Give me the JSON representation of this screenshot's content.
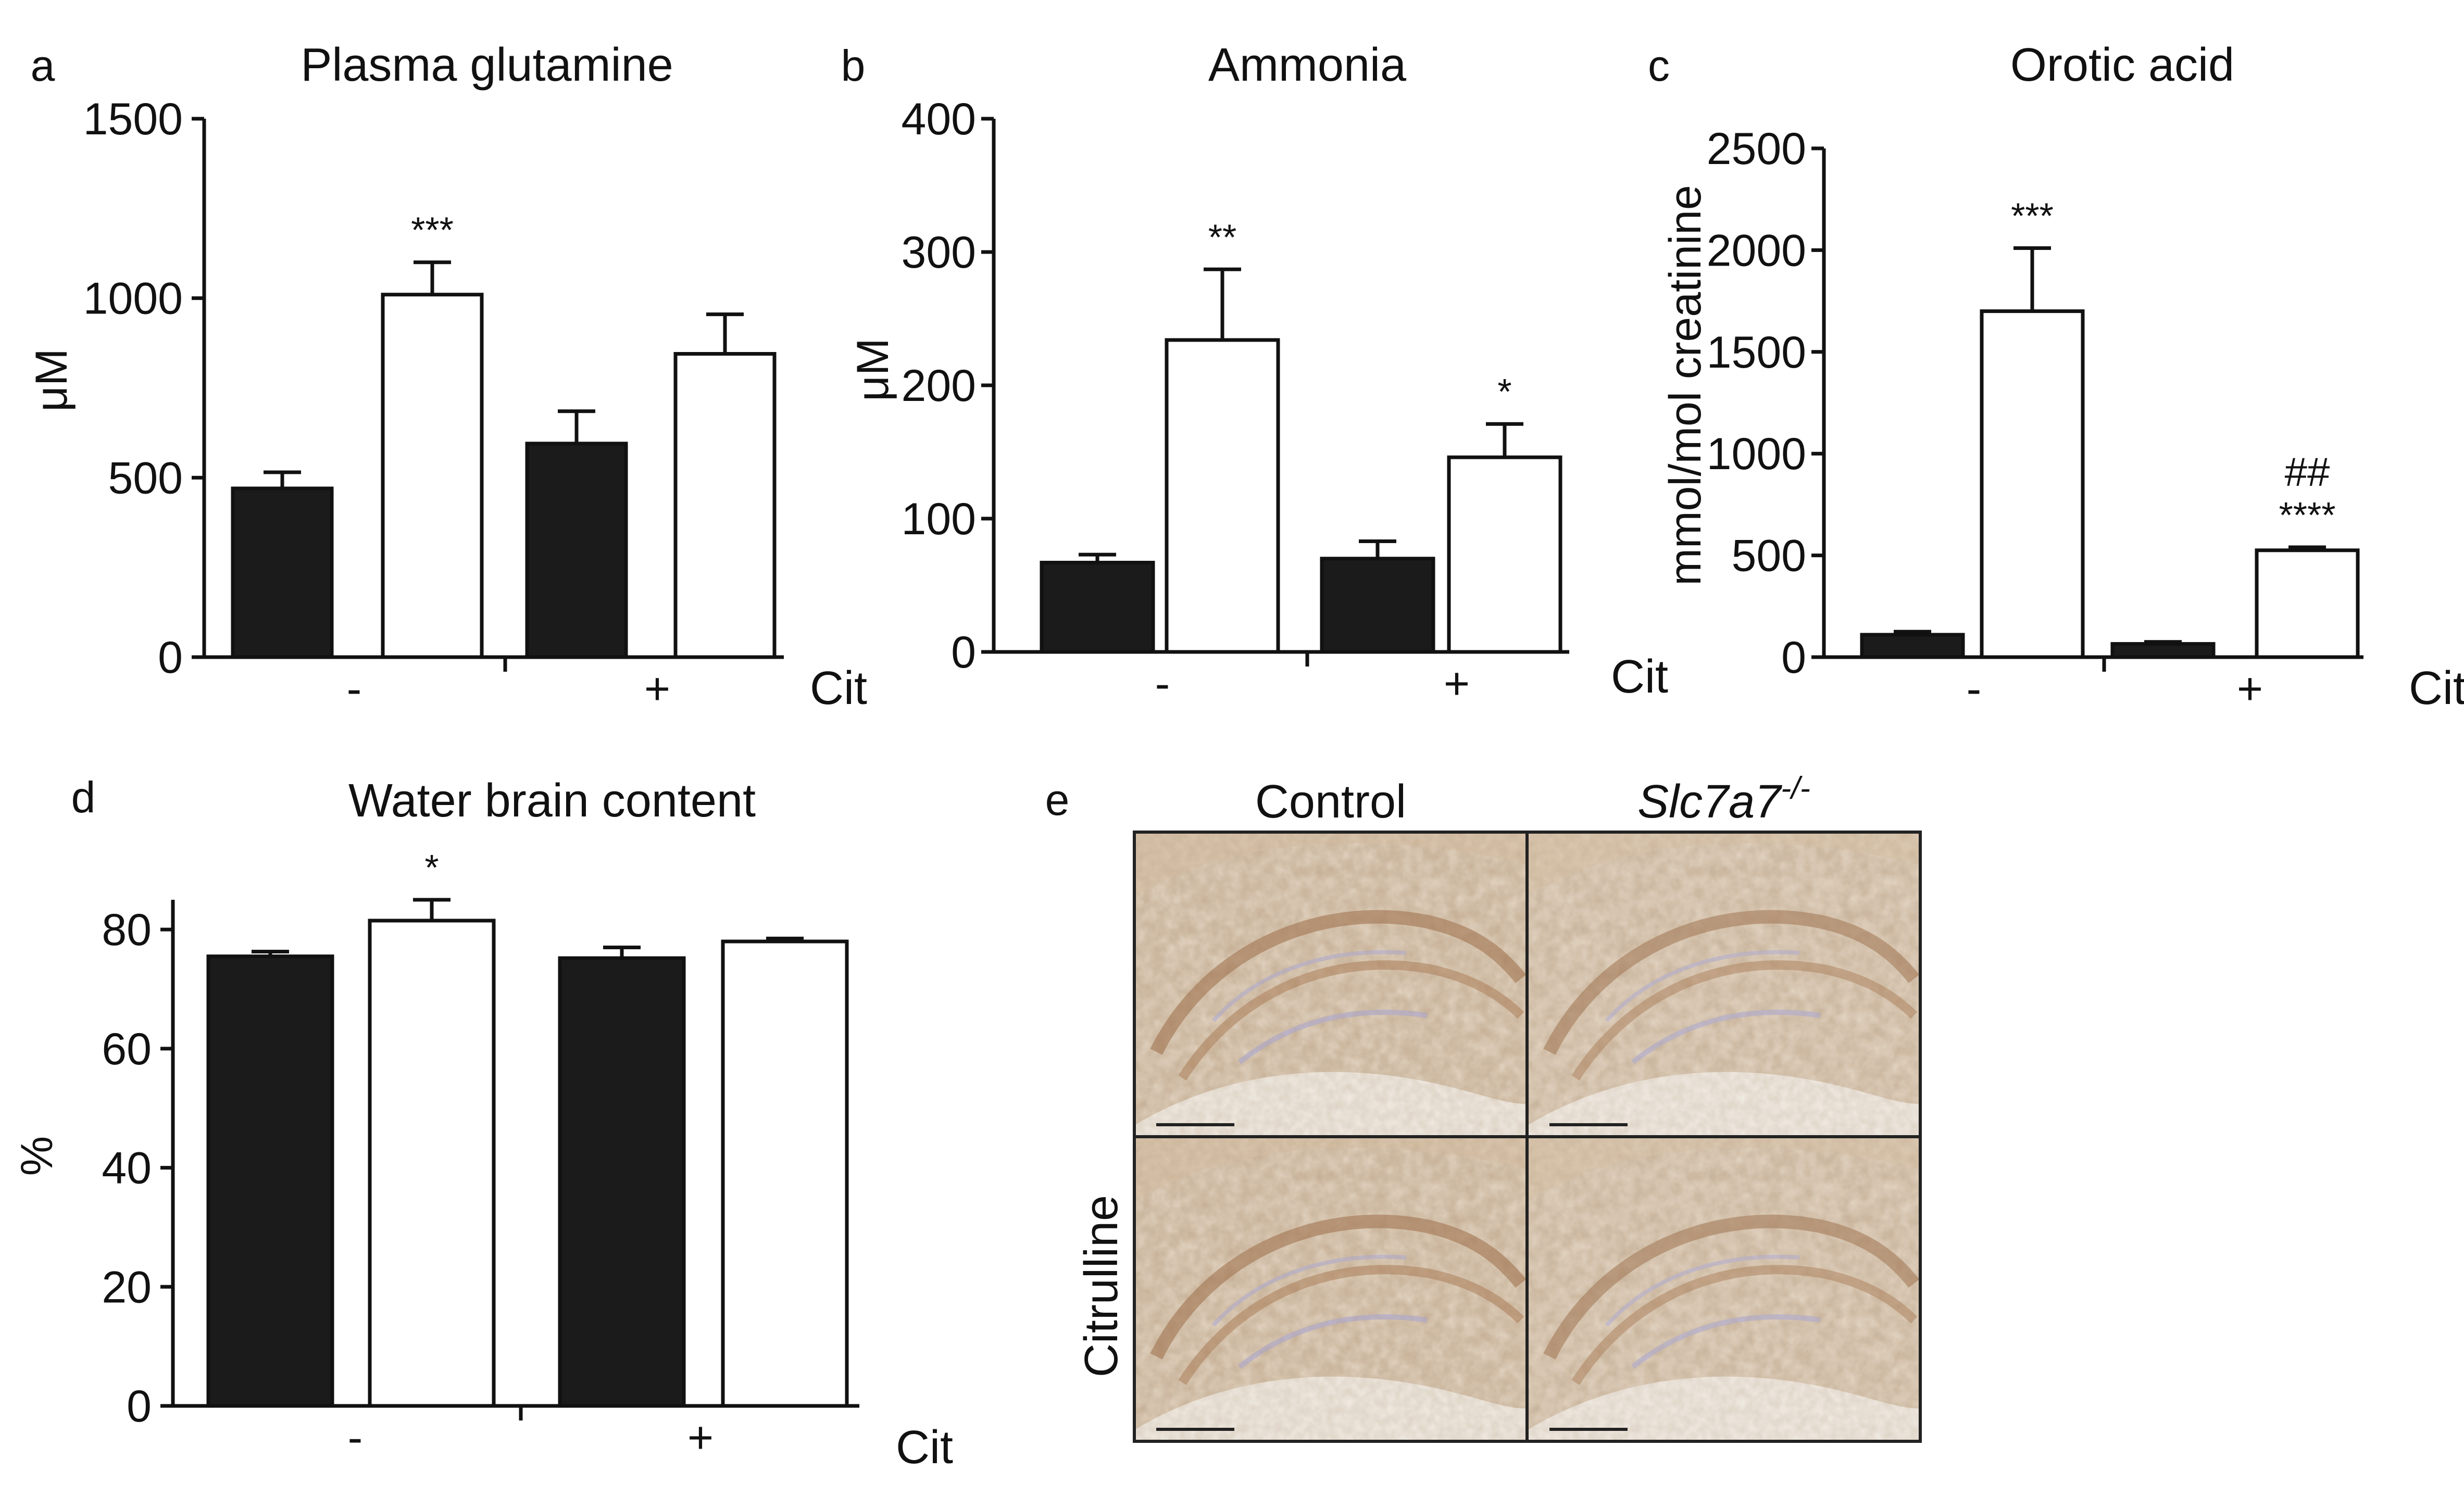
{
  "colors": {
    "dark_bar": "#1b1b1b",
    "open_bar": "#ffffff",
    "axis": "#111111"
  },
  "chart_data": [
    {
      "panel": "a",
      "type": "bar",
      "title": "Plasma glutamine",
      "ylabel": "μM",
      "xlabel": "Cit",
      "ylim": [
        0,
        1500
      ],
      "yticks": [
        "0",
        "500",
        "1000",
        "1500"
      ],
      "groups": [
        "-",
        "+"
      ],
      "bars": [
        {
          "group": "-",
          "genotype": "control",
          "value": 470,
          "error": 45,
          "annotation": ""
        },
        {
          "group": "-",
          "genotype": "Slc7a7-/-",
          "value": 1010,
          "error": 90,
          "annotation": "***"
        },
        {
          "group": "+",
          "genotype": "control",
          "value": 595,
          "error": 90,
          "annotation": ""
        },
        {
          "group": "+",
          "genotype": "Slc7a7-/-",
          "value": 845,
          "error": 110,
          "annotation": ""
        }
      ]
    },
    {
      "panel": "b",
      "type": "bar",
      "title": "Ammonia",
      "ylabel": "μM",
      "xlabel": "Cit",
      "ylim": [
        0,
        400
      ],
      "yticks": [
        "0",
        "100",
        "200",
        "300",
        "400"
      ],
      "groups": [
        "-",
        "+"
      ],
      "bars": [
        {
          "group": "-",
          "genotype": "control",
          "value": 67,
          "error": 6,
          "annotation": ""
        },
        {
          "group": "-",
          "genotype": "Slc7a7-/-",
          "value": 234,
          "error": 53,
          "annotation": "**"
        },
        {
          "group": "+",
          "genotype": "control",
          "value": 70,
          "error": 13,
          "annotation": ""
        },
        {
          "group": "+",
          "genotype": "Slc7a7-/-",
          "value": 146,
          "error": 25,
          "annotation": "*"
        }
      ]
    },
    {
      "panel": "c",
      "type": "bar",
      "title": "Orotic acid",
      "ylabel": "mmol/mol creatinine",
      "xlabel": "Cit",
      "ylim": [
        0,
        2500
      ],
      "yticks": [
        "0",
        "500",
        "1000",
        "1500",
        "2000",
        "2500"
      ],
      "groups": [
        "-",
        "+"
      ],
      "bars": [
        {
          "group": "-",
          "genotype": "control",
          "value": 110,
          "error": 15,
          "annotation": ""
        },
        {
          "group": "-",
          "genotype": "Slc7a7-/-",
          "value": 1700,
          "error": 310,
          "annotation": "***"
        },
        {
          "group": "+",
          "genotype": "control",
          "value": 65,
          "error": 10,
          "annotation": ""
        },
        {
          "group": "+",
          "genotype": "Slc7a7-/-",
          "value": 525,
          "error": 15,
          "annotation": "****",
          "annotation2": "##"
        }
      ]
    },
    {
      "panel": "d",
      "type": "bar",
      "title": "Water brain content",
      "ylabel": "%",
      "xlabel": "Cit",
      "ylim": [
        0,
        85
      ],
      "yticks": [
        "0",
        "20",
        "40",
        "60",
        "80"
      ],
      "groups": [
        "-",
        "+"
      ],
      "bars": [
        {
          "group": "-",
          "genotype": "control",
          "value": 75.5,
          "error": 0.8,
          "annotation": ""
        },
        {
          "group": "-",
          "genotype": "Slc7a7-/-",
          "value": 81.5,
          "error": 3.5,
          "annotation": "*"
        },
        {
          "group": "+",
          "genotype": "control",
          "value": 75.2,
          "error": 1.8,
          "annotation": ""
        },
        {
          "group": "+",
          "genotype": "Slc7a7-/-",
          "value": 78,
          "error": 0.5,
          "annotation": ""
        }
      ]
    }
  ],
  "micrographs": {
    "panel": "e",
    "columns": [
      "Control",
      "Slc7a7"
    ],
    "superscript": "-/-",
    "row_label": "Citrulline"
  }
}
